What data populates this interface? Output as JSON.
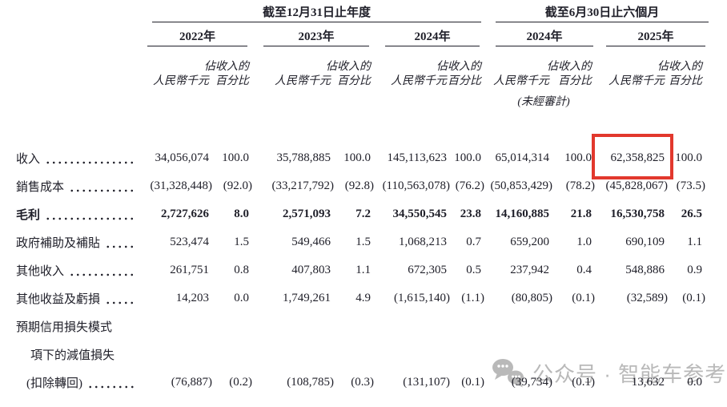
{
  "header": {
    "group1": {
      "title": "截至12月31日止年度",
      "years": [
        "2022年",
        "2023年",
        "2024年"
      ]
    },
    "group2": {
      "title": "截至6月30日止六個月",
      "years": [
        "2024年",
        "2025年"
      ]
    },
    "amount_unit": "人民幣千元",
    "pct_line1": "佔收入的",
    "pct_line2": "百分比",
    "unaudited": "(未經審計)"
  },
  "rows": [
    {
      "label": "收入",
      "leader": true,
      "indent": false,
      "bold": false,
      "values": [
        "34,056,074",
        "100.0",
        "35,788,885",
        "100.0",
        "145,113,623",
        "100.0",
        "65,014,314",
        "100.0",
        "62,358,825",
        "100.0"
      ]
    },
    {
      "label": "銷售成本",
      "leader": true,
      "indent": false,
      "bold": false,
      "values": [
        "(31,328,448)",
        "(92.0)",
        "(33,217,792)",
        "(92.8)",
        "(110,563,078)",
        "(76.2)",
        "(50,853,429)",
        "(78.2)",
        "(45,828,067)",
        "(73.5)"
      ]
    },
    {
      "label": "毛利",
      "leader": true,
      "indent": false,
      "bold": true,
      "values": [
        "2,727,626",
        "8.0",
        "2,571,093",
        "7.2",
        "34,550,545",
        "23.8",
        "14,160,885",
        "21.8",
        "16,530,758",
        "26.5"
      ]
    },
    {
      "label": "政府補助及補貼",
      "leader": true,
      "indent": false,
      "bold": false,
      "values": [
        "523,474",
        "1.5",
        "549,466",
        "1.5",
        "1,068,213",
        "0.7",
        "659,200",
        "1.0",
        "690,109",
        "1.1"
      ]
    },
    {
      "label": "其他收入",
      "leader": true,
      "indent": false,
      "bold": false,
      "values": [
        "261,751",
        "0.8",
        "407,803",
        "1.1",
        "672,305",
        "0.5",
        "237,942",
        "0.4",
        "548,886",
        "0.9"
      ]
    },
    {
      "label": "其他收益及虧損",
      "leader": true,
      "indent": false,
      "bold": false,
      "values": [
        "14,203",
        "0.0",
        "1,749,261",
        "4.9",
        "(1,615,140)",
        "(1.1)",
        "(80,805)",
        "(0.1)",
        "(32,589)",
        "(0.1)"
      ]
    },
    {
      "label": "預期信用損失模式",
      "leader": false,
      "indent": false,
      "bold": false,
      "values": []
    },
    {
      "label": "項下的減值損失",
      "leader": false,
      "indent": true,
      "bold": false,
      "values": []
    },
    {
      "label": "(扣除轉回)",
      "leader": true,
      "indent": true,
      "bold": false,
      "values": [
        "(76,887)",
        "(0.2)",
        "(108,785)",
        "(0.3)",
        "(131,107)",
        "(0.1)",
        "(39,734)",
        "(0.1)",
        "13,632",
        "0.0"
      ]
    }
  ],
  "highlight": {
    "row": 0,
    "col": 8,
    "color": "#e2382d"
  },
  "watermark": {
    "text": "公众号 · 智能车参考",
    "icon": "wechat-icon",
    "color": "#b9b9b9"
  }
}
